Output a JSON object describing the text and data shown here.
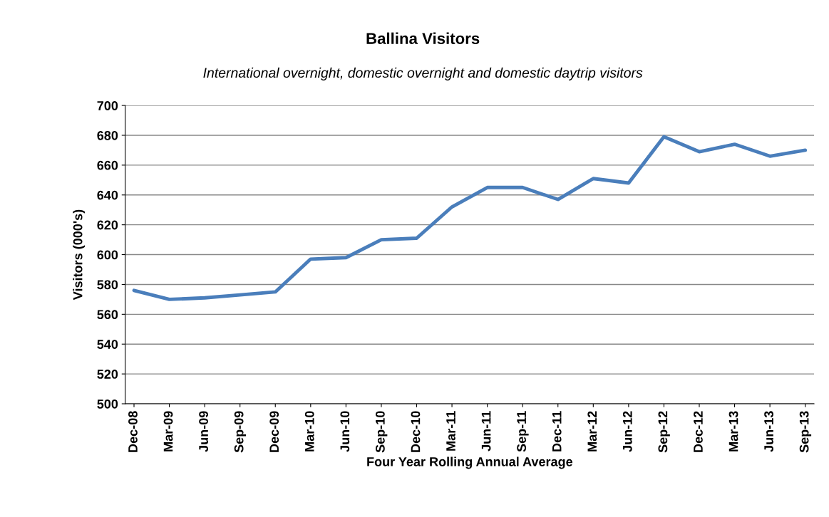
{
  "chart_data": {
    "type": "line",
    "title": "Ballina Visitors",
    "subtitle": "International overnight, domestic overnight and domestic daytrip visitors",
    "xlabel": "Four Year Rolling Annual Average",
    "ylabel": "Visitors (000's)",
    "categories": [
      "Dec-08",
      "Mar-09",
      "Jun-09",
      "Sep-09",
      "Dec-09",
      "Mar-10",
      "Jun-10",
      "Sep-10",
      "Dec-10",
      "Mar-11",
      "Jun-11",
      "Sep-11",
      "Dec-11",
      "Mar-12",
      "Jun-12",
      "Sep-12",
      "Dec-12",
      "Mar-13",
      "Jun-13",
      "Sep-13"
    ],
    "series": [
      {
        "color": "#4a7ebb",
        "values": [
          576,
          570,
          571,
          573,
          575,
          597,
          598,
          610,
          611,
          632,
          645,
          645,
          637,
          651,
          648,
          679,
          669,
          674,
          666,
          670
        ]
      }
    ],
    "ylim": [
      500,
      700
    ],
    "yticks": [
      500,
      520,
      540,
      560,
      580,
      600,
      620,
      640,
      660,
      680,
      700
    ],
    "grid": "y",
    "marker": "none",
    "line_style": "solid"
  }
}
